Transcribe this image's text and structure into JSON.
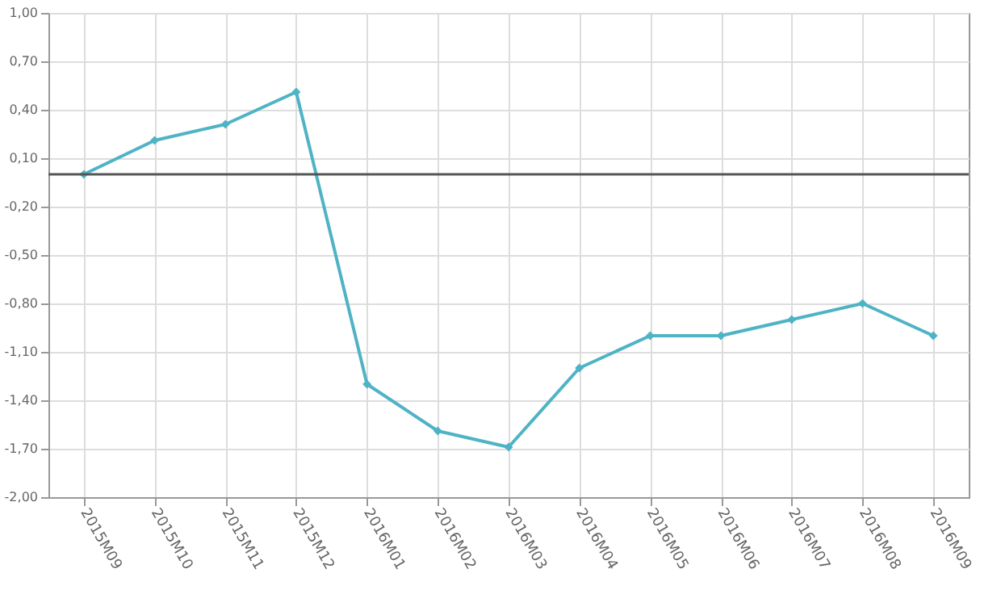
{
  "chart_data": {
    "type": "line",
    "categories": [
      "2015M09",
      "2015M10",
      "2015M11",
      "2015M12",
      "2016M01",
      "2016M02",
      "2016M03",
      "2016M04",
      "2016M05",
      "2016M06",
      "2016M07",
      "2016M08",
      "2016M09"
    ],
    "series": [
      {
        "color": "#4fb3c6",
        "values": [
          0.0,
          0.21,
          0.31,
          0.51,
          -1.3,
          -1.59,
          -1.69,
          -1.2,
          -1.0,
          -1.0,
          -0.9,
          -0.8,
          -1.0
        ]
      }
    ],
    "ylim": [
      -2,
      1
    ],
    "yticks": [
      {
        "value": 1,
        "label": "1,00"
      },
      {
        "value": 0.7,
        "label": "0,70"
      },
      {
        "value": 0.4,
        "label": "0,40"
      },
      {
        "value": 0.1,
        "label": "0,10"
      },
      {
        "value": -0.2,
        "label": "-0,20"
      },
      {
        "value": -0.5,
        "label": "-0,50"
      },
      {
        "value": -0.8,
        "label": "-0,80"
      },
      {
        "value": -1.1,
        "label": "-1,10"
      },
      {
        "value": -1.4,
        "label": "-1,40"
      },
      {
        "value": -1.7,
        "label": "-1,70"
      },
      {
        "value": -2,
        "label": "-2,00"
      }
    ],
    "ref_lines": [
      {
        "axis": "y",
        "value": 0,
        "color": "#555555"
      }
    ],
    "grid": true,
    "marker": "diamond",
    "line_style": "solid"
  }
}
